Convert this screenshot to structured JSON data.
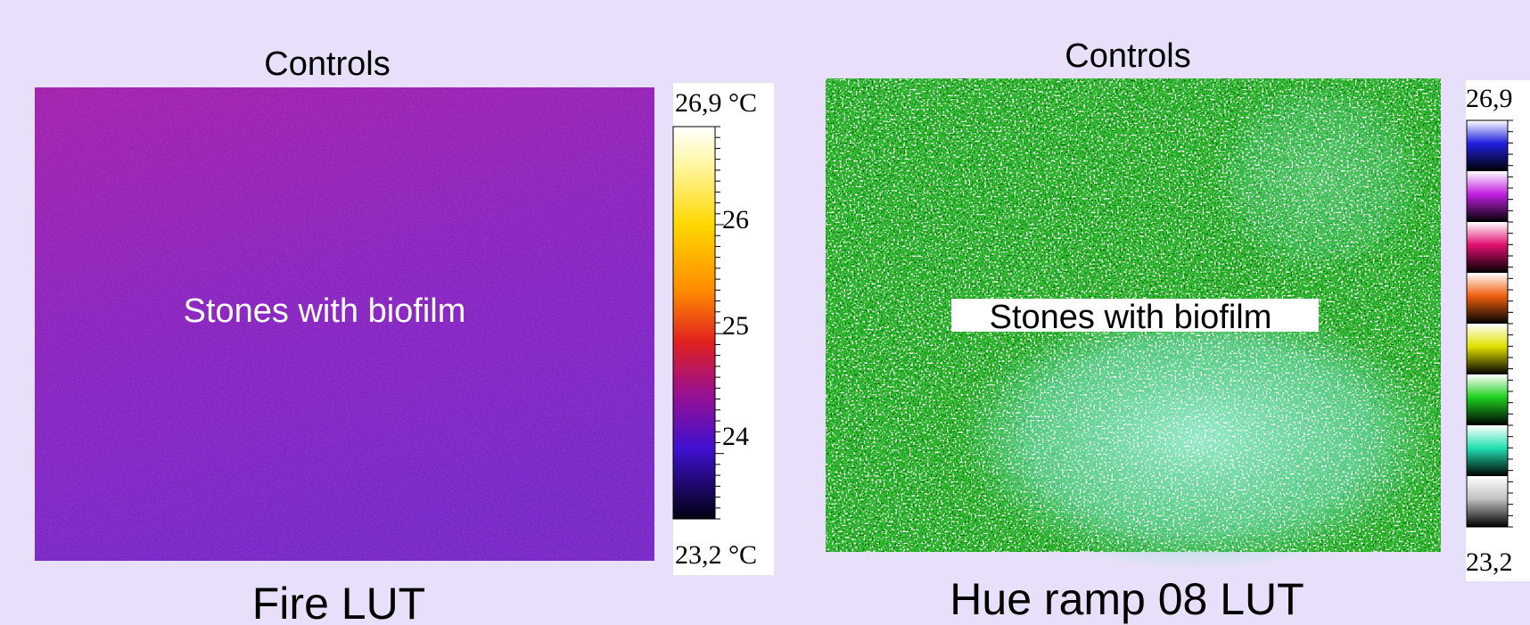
{
  "panels": [
    {
      "header": "Controls",
      "image_label": "Stones with biofilm",
      "caption": "Fire LUT",
      "colorbar": {
        "max_label": "26,9 °C",
        "min_label": "23,2 °C",
        "tick_labels": [
          "26",
          "25",
          "24"
        ]
      }
    },
    {
      "header": "Controls",
      "image_label": "Stones with biofilm",
      "caption": "Hue ramp 08 LUT",
      "colorbar": {
        "max_label": "26,9",
        "min_label": "23,2"
      }
    }
  ]
}
